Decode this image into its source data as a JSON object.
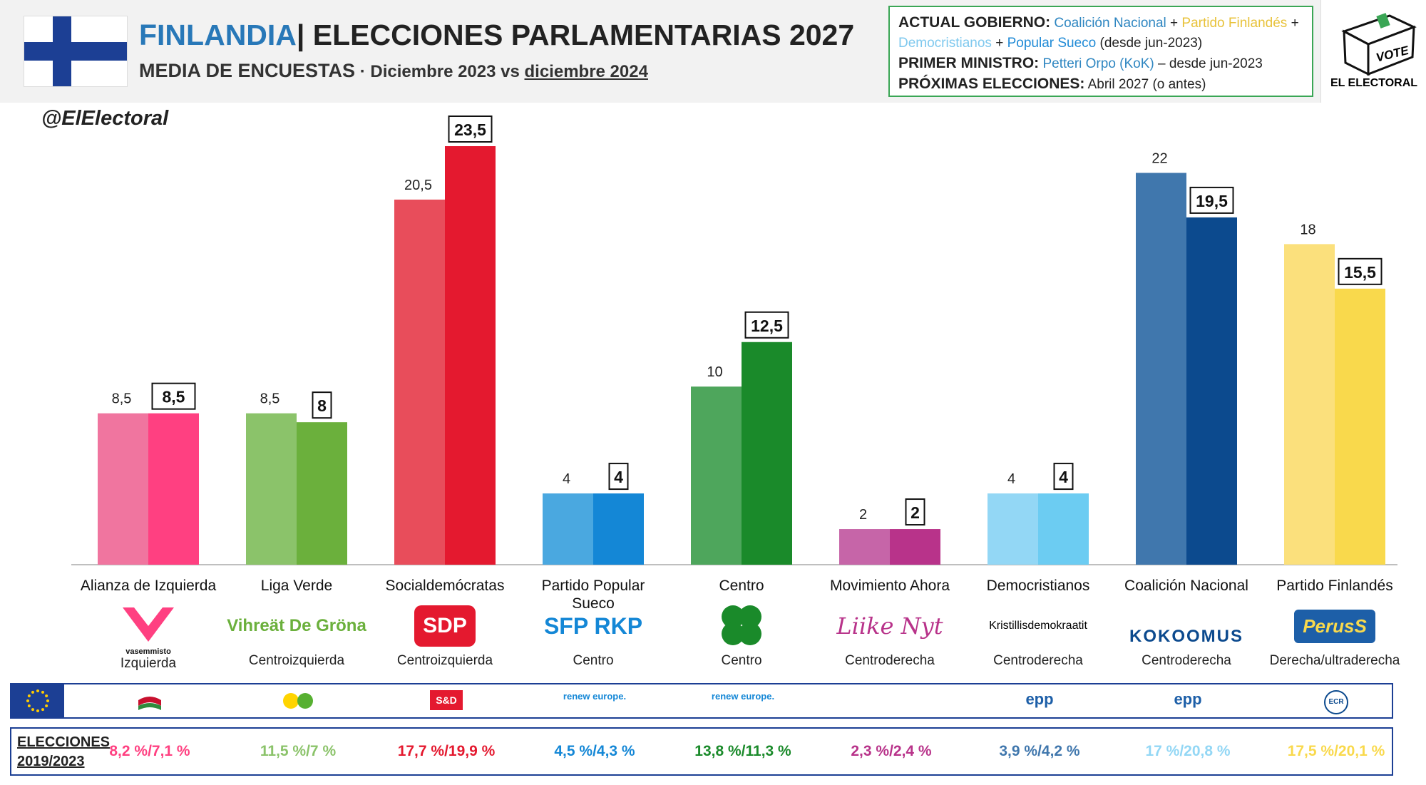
{
  "header": {
    "country": "FINLANDIA",
    "title_rest": "| ELECCIONES PARLAMENTARIAS 2027",
    "subtitle": "MEDIA DE ENCUESTAS",
    "subtitle_dot": " · ",
    "dates_from": "Diciembre 2023 vs ",
    "dates_to": "diciembre 2024"
  },
  "government": {
    "gov_label": "ACTUAL GOBIERNO:",
    "party_kok": "Coalición Nacional",
    "plus": " + ",
    "party_ps": "Partido Finlandés",
    "party_kd": "Democristianos",
    "party_rkp": "Popular Sueco",
    "gov_since": " (desde jun-2023)",
    "pm_label": "PRIMER MINISTRO:",
    "pm_name": "Petteri Orpo (KoK)",
    "pm_since": " – desde jun-2023",
    "next_label": "PRÓXIMAS ELECCIONES:",
    "next_value": " Abril 2027 (o antes)"
  },
  "branding": {
    "vote": "VOTE",
    "name": "EL ELECTORAL",
    "handle": "@ElElectoral"
  },
  "colors": {
    "accent": "#2878b8",
    "gov_box_border": "#3aa655",
    "row_border": "#1c3f94"
  },
  "chart_data": {
    "type": "bar",
    "categories": [
      "Alianza de Izquierda",
      "Liga Verde",
      "Socialdemócratas",
      "Partido Popular Sueco",
      "Centro",
      "Movimiento Ahora",
      "Democristianos",
      "Coalición Nacional",
      "Partido Finlandés"
    ],
    "series": [
      {
        "name": "Diciembre 2023",
        "values": [
          8.5,
          8.5,
          20.5,
          4,
          10,
          2,
          4,
          22,
          18
        ],
        "labels": [
          "8,5",
          "8,5",
          "20,5",
          "4",
          "10",
          "2",
          "4",
          "22",
          "18"
        ]
      },
      {
        "name": "diciembre 2024",
        "values": [
          8.5,
          8,
          23.5,
          4,
          12.5,
          2,
          4,
          19.5,
          15.5
        ],
        "labels": [
          "8,5",
          "8",
          "23,5",
          "4",
          "12,5",
          "2",
          "4",
          "19,5",
          "15,5"
        ]
      }
    ],
    "colors_2023": [
      "#f0759f",
      "#8bc36a",
      "#e84d5b",
      "#4aa8e0",
      "#4ea65c",
      "#c665a8",
      "#93d7f5",
      "#4077ad",
      "#fbe07c"
    ],
    "colors_2024": [
      "#ff4081",
      "#6bb03c",
      "#e4192f",
      "#1487d6",
      "#1a8a2a",
      "#b8338a",
      "#6cccf2",
      "#0c4a8e",
      "#f9d94c"
    ],
    "ylim": [
      0,
      26
    ],
    "grid": false,
    "legend": "none"
  },
  "parties": [
    {
      "logo_text": "vasemmisto",
      "logo_color": "#ff4081",
      "ideology": "Izquierda",
      "eu_group": "",
      "eu_color": "#c8102e",
      "result": "8,2 %/7,1 %",
      "result_color": "#ff4081"
    },
    {
      "logo_text": "Vihreät De Gröna",
      "logo_color": "#6bb03c",
      "ideology": "Centroizquierda",
      "eu_group": "",
      "eu_color": "#57b031",
      "result": "11,5 %/7 %",
      "result_color": "#8bc36a"
    },
    {
      "logo_text": "SDP",
      "logo_color": "#e4192f",
      "ideology": "Centroizquierda",
      "eu_group": "S&D",
      "eu_color": "#e4192f",
      "result": "17,7 %/19,9 %",
      "result_color": "#e4192f"
    },
    {
      "logo_text": "SFP RKP",
      "logo_color": "#1487d6",
      "ideology": "Centro",
      "eu_group": "renew europe.",
      "eu_color": "#1487d6",
      "result": "4,5 %/4,3 %",
      "result_color": "#1487d6"
    },
    {
      "logo_text": "",
      "logo_color": "#1a8a2a",
      "ideology": "Centro",
      "eu_group": "renew europe.",
      "eu_color": "#1487d6",
      "result": "13,8 %/11,3 %",
      "result_color": "#1a8a2a"
    },
    {
      "logo_text": "Liike Nyt",
      "logo_color": "#b8338a",
      "ideology": "Centroderecha",
      "eu_group": "",
      "eu_color": "#b8338a",
      "result": "2,3 %/2,4 %",
      "result_color": "#b8338a"
    },
    {
      "logo_text": "Kristillisdemokraatit",
      "logo_color": "#1d5fa8",
      "ideology": "Centroderecha",
      "eu_group": "epp",
      "eu_color": "#1d5fa8",
      "result": "3,9 %/4,2 %",
      "result_color": "#4077ad"
    },
    {
      "logo_text": "KOKOOMUS",
      "logo_color": "#0c4a8e",
      "ideology": "Centroderecha",
      "eu_group": "epp",
      "eu_color": "#1d5fa8",
      "result": "17 %/20,8 %",
      "result_color": "#93d7f5"
    },
    {
      "logo_text": "PerusS",
      "logo_color": "#1d5fa8",
      "ideology": "Derecha/ultraderecha",
      "eu_group": "ECR",
      "eu_color": "#0c4a8e",
      "result": "17,5 %/20,1 %",
      "result_color": "#f9d94c"
    }
  ],
  "results_row": {
    "label_line1": "ELECCIONES",
    "label_line2": "2019/2023"
  }
}
